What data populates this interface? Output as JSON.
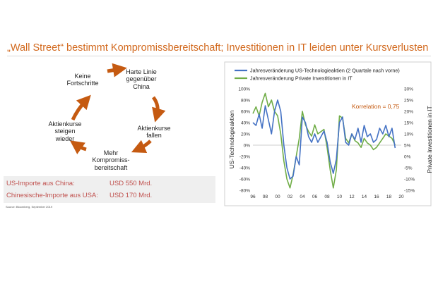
{
  "title": "„Wall Street“ bestimmt Kompromissbereitschaft; Investitionen in IT leiden unter Kursverlusten",
  "cycle": {
    "nodes": [
      {
        "lines": [
          "Keine",
          "Fortschritte"
        ]
      },
      {
        "lines": [
          "Harte Linie",
          "gegenüber",
          "China"
        ]
      },
      {
        "lines": [
          "Aktienkurse",
          "fallen"
        ]
      },
      {
        "lines": [
          "Mehr",
          "Kompromiss-",
          "bereitschaft"
        ]
      },
      {
        "lines": [
          "Aktienkurse",
          "steigen",
          "wieder"
        ]
      }
    ],
    "arrow_color": "#c55a11"
  },
  "imports": {
    "rows": [
      {
        "label": "US-Importe aus China:",
        "value": "USD 550 Mrd."
      },
      {
        "label": "Chinesische-Importe aus USA:",
        "value": "USD 170 Mrd."
      }
    ]
  },
  "source": "Source: Bloomberg, September 2019",
  "chart_data": {
    "type": "line",
    "legend": [
      "Jahresveränderung US-Technologieaktien (2 Quartale nach vorne)",
      "Jahresveränderung Private Investitionen in IT"
    ],
    "legend_position": "top-left",
    "annotation": "Korrelation = 0,75",
    "ylabel_left": "US-Technologieaktien",
    "ylabel_right": "Private Investitionen in IT",
    "yticks_left": [
      "100%",
      "80%",
      "60%",
      "40%",
      "20%",
      "0%",
      "-20%",
      "-40%",
      "-60%",
      "-80%"
    ],
    "yticks_right": [
      "30%",
      "25%",
      "20%",
      "15%",
      "10%",
      "5%",
      "0%",
      "-5%",
      "-10%",
      "-15%"
    ],
    "ylim_left": [
      -80,
      100
    ],
    "ylim_right": [
      -15,
      30
    ],
    "xticks": [
      "96",
      "98",
      "00",
      "02",
      "04",
      "06",
      "08",
      "10",
      "12",
      "14",
      "16",
      "18",
      "20"
    ],
    "xlim": [
      1996,
      2020
    ],
    "grid": false,
    "series": [
      {
        "name": "Jahresveränderung US-Technologieaktien (2 Quartale nach vorne)",
        "axis": "left",
        "color": "#4472c4",
        "x": [
          1996.0,
          1996.5,
          1997.0,
          1997.5,
          1998.0,
          1998.5,
          1999.0,
          1999.5,
          2000.0,
          2000.5,
          2001.0,
          2001.5,
          2002.0,
          2002.5,
          2003.0,
          2003.5,
          2004.0,
          2004.5,
          2005.0,
          2005.5,
          2006.0,
          2006.5,
          2007.0,
          2007.5,
          2008.0,
          2008.5,
          2009.0,
          2009.5,
          2010.0,
          2010.5,
          2011.0,
          2011.5,
          2012.0,
          2012.5,
          2013.0,
          2013.5,
          2014.0,
          2014.5,
          2015.0,
          2015.5,
          2016.0,
          2016.5,
          2017.0,
          2017.5,
          2018.0,
          2018.5,
          2019.0
        ],
        "values": [
          40,
          35,
          55,
          30,
          70,
          45,
          20,
          60,
          80,
          60,
          0,
          -40,
          -60,
          -55,
          -20,
          -35,
          50,
          40,
          15,
          5,
          20,
          5,
          15,
          25,
          5,
          -30,
          -50,
          -25,
          40,
          50,
          5,
          0,
          20,
          10,
          30,
          5,
          35,
          15,
          20,
          5,
          10,
          30,
          20,
          35,
          15,
          30,
          -5
        ]
      },
      {
        "name": "Jahresveränderung Private Investitionen in IT",
        "axis": "right",
        "color": "#70ad47",
        "x": [
          1996.0,
          1996.5,
          1997.0,
          1997.5,
          1998.0,
          1998.5,
          1999.0,
          1999.5,
          2000.0,
          2000.5,
          2001.0,
          2001.5,
          2002.0,
          2002.5,
          2003.0,
          2003.5,
          2004.0,
          2004.5,
          2005.0,
          2005.5,
          2006.0,
          2006.5,
          2007.0,
          2007.5,
          2008.0,
          2008.5,
          2009.0,
          2009.5,
          2010.0,
          2010.5,
          2011.0,
          2011.5,
          2012.0,
          2012.5,
          2013.0,
          2013.5,
          2014.0,
          2014.5,
          2015.0,
          2015.5,
          2016.0,
          2016.5,
          2017.0,
          2017.5,
          2018.0,
          2018.5,
          2019.0
        ],
        "values": [
          19,
          22,
          18,
          24,
          28,
          22,
          25,
          20,
          18,
          10,
          -2,
          -10,
          -14,
          -8,
          0,
          8,
          20,
          14,
          11,
          9,
          14,
          10,
          11,
          12,
          4,
          -6,
          -14,
          -6,
          18,
          17,
          8,
          6,
          10,
          7,
          6,
          4,
          8,
          6,
          5,
          3,
          4,
          6,
          8,
          10,
          9,
          8,
          5
        ]
      }
    ]
  }
}
